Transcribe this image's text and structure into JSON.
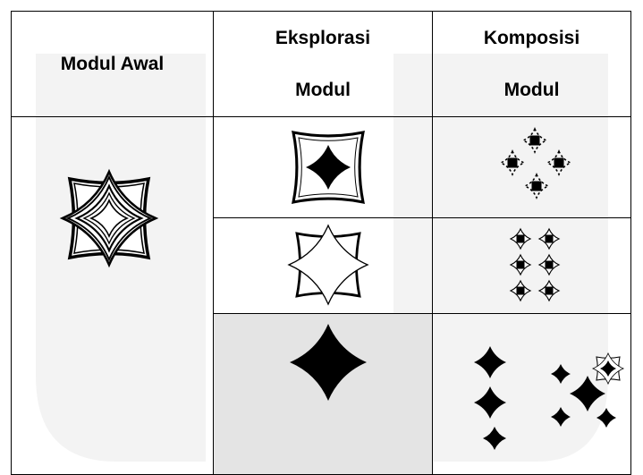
{
  "header": [
    "Modul Awal",
    [
      "Eksplorasi",
      "Modul"
    ],
    [
      "Komposisi",
      "Modul"
    ]
  ]
}
